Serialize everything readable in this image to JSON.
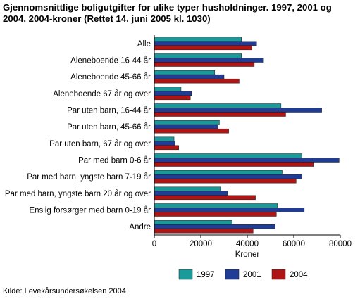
{
  "chart_data": {
    "type": "bar",
    "orientation": "horizontal",
    "title": "Gjennomsnittlige boligutgifter for ulike typer husholdninger. 1997, 2001 og 2004. 2004-kroner (Rettet 14. juni 2005 kl. 1030)",
    "xlabel": "Kroner",
    "ylabel": "",
    "xlim": [
      0,
      80000
    ],
    "xticks": [
      0,
      20000,
      40000,
      60000,
      80000
    ],
    "xtick_labels": [
      "0",
      "20000",
      "40000",
      "60000",
      "80000"
    ],
    "grid": false,
    "legend_position": "bottom-right",
    "categories": [
      "Alle",
      "Aleneboende 16-44 år",
      "Aleneboende 45-66 år",
      "Aleneboende 67 år og over",
      "Par uten barn, 16-44 år",
      "Par uten barn, 45-66 år",
      "Par uten barn, 67 år og over",
      "Par med barn 0-6 år",
      "Par med barn, yngste barn 7-19 år",
      "Par med barn, yngste barn 20 år og over",
      "Enslig forsørger med barn 0-19 år",
      "Andre"
    ],
    "series": [
      {
        "name": "1997",
        "color": "#1a9b9b",
        "values": [
          37500,
          37500,
          26000,
          11500,
          54500,
          28000,
          8500,
          63500,
          55000,
          28500,
          53000,
          33500
        ]
      },
      {
        "name": "2001",
        "color": "#1f3d96",
        "values": [
          44000,
          47000,
          30000,
          16000,
          72000,
          27500,
          9000,
          79500,
          63500,
          31500,
          64500,
          52000
        ]
      },
      {
        "name": "2004",
        "color": "#b01515",
        "values": [
          42000,
          43000,
          36500,
          15500,
          56500,
          32000,
          10500,
          68500,
          61000,
          43500,
          52500,
          42500
        ]
      }
    ],
    "source": "Kilde: Levekårsundersøkelsen 2004"
  }
}
